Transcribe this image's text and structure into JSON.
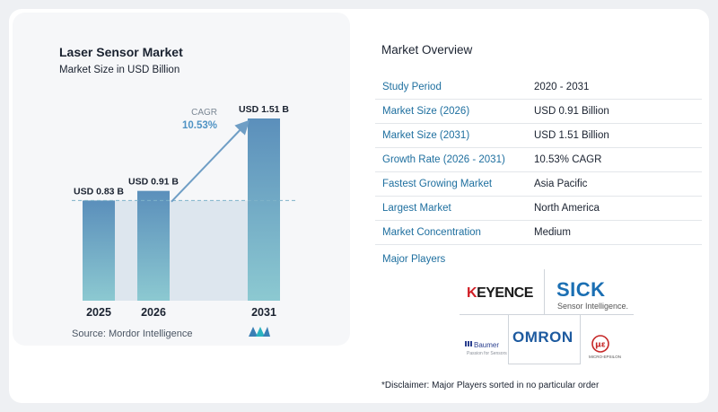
{
  "chart_data": {
    "type": "bar",
    "title": "Laser Sensor Market",
    "subtitle": "Market Size in USD Billion",
    "categories": [
      "2025",
      "2026",
      "2031"
    ],
    "values": [
      0.83,
      0.91,
      1.51
    ],
    "data_labels": [
      "USD 0.83 B",
      "USD 0.91 B",
      "USD 1.51 B"
    ],
    "unit": "USD Billion",
    "annotation": {
      "label": "CAGR",
      "value": "10.53%"
    },
    "xlabel": "",
    "ylabel": "",
    "ylim": [
      0,
      1.51
    ],
    "grid": false,
    "colors": {
      "bar_top": "#5b8fbb",
      "bar_bottom": "#8cc9d1",
      "arrow": "#6f9ec5",
      "cagr": "#4f93c4"
    }
  },
  "source": "Source:  Mordor Intelligence",
  "overview": {
    "title": "Market Overview",
    "rows": [
      {
        "key": "Study Period",
        "value": "2020 - 2031"
      },
      {
        "key": "Market Size (2026)",
        "value": "USD 0.91 Billion"
      },
      {
        "key": "Market Size (2031)",
        "value": "USD 1.51 Billion"
      },
      {
        "key": "Growth Rate (2026 - 2031)",
        "value": "10.53% CAGR"
      },
      {
        "key": "Fastest Growing Market",
        "value": "Asia Pacific"
      },
      {
        "key": "Largest Market",
        "value": "North America"
      },
      {
        "key": "Market Concentration",
        "value": "Medium"
      }
    ]
  },
  "players": {
    "label": "Major Players",
    "keyence_a": "K",
    "keyence_b": "EYENCE",
    "sick": "SICK",
    "sick_tagline": "Sensor Intelligence.",
    "omron": "OMRON",
    "baumer": "Baumer",
    "baumer_tagline": "Passion for Sensors",
    "micro_epsilon": "MICRO-EPSILON"
  },
  "disclaimer": "*Disclaimer: Major Players sorted in no particular order"
}
